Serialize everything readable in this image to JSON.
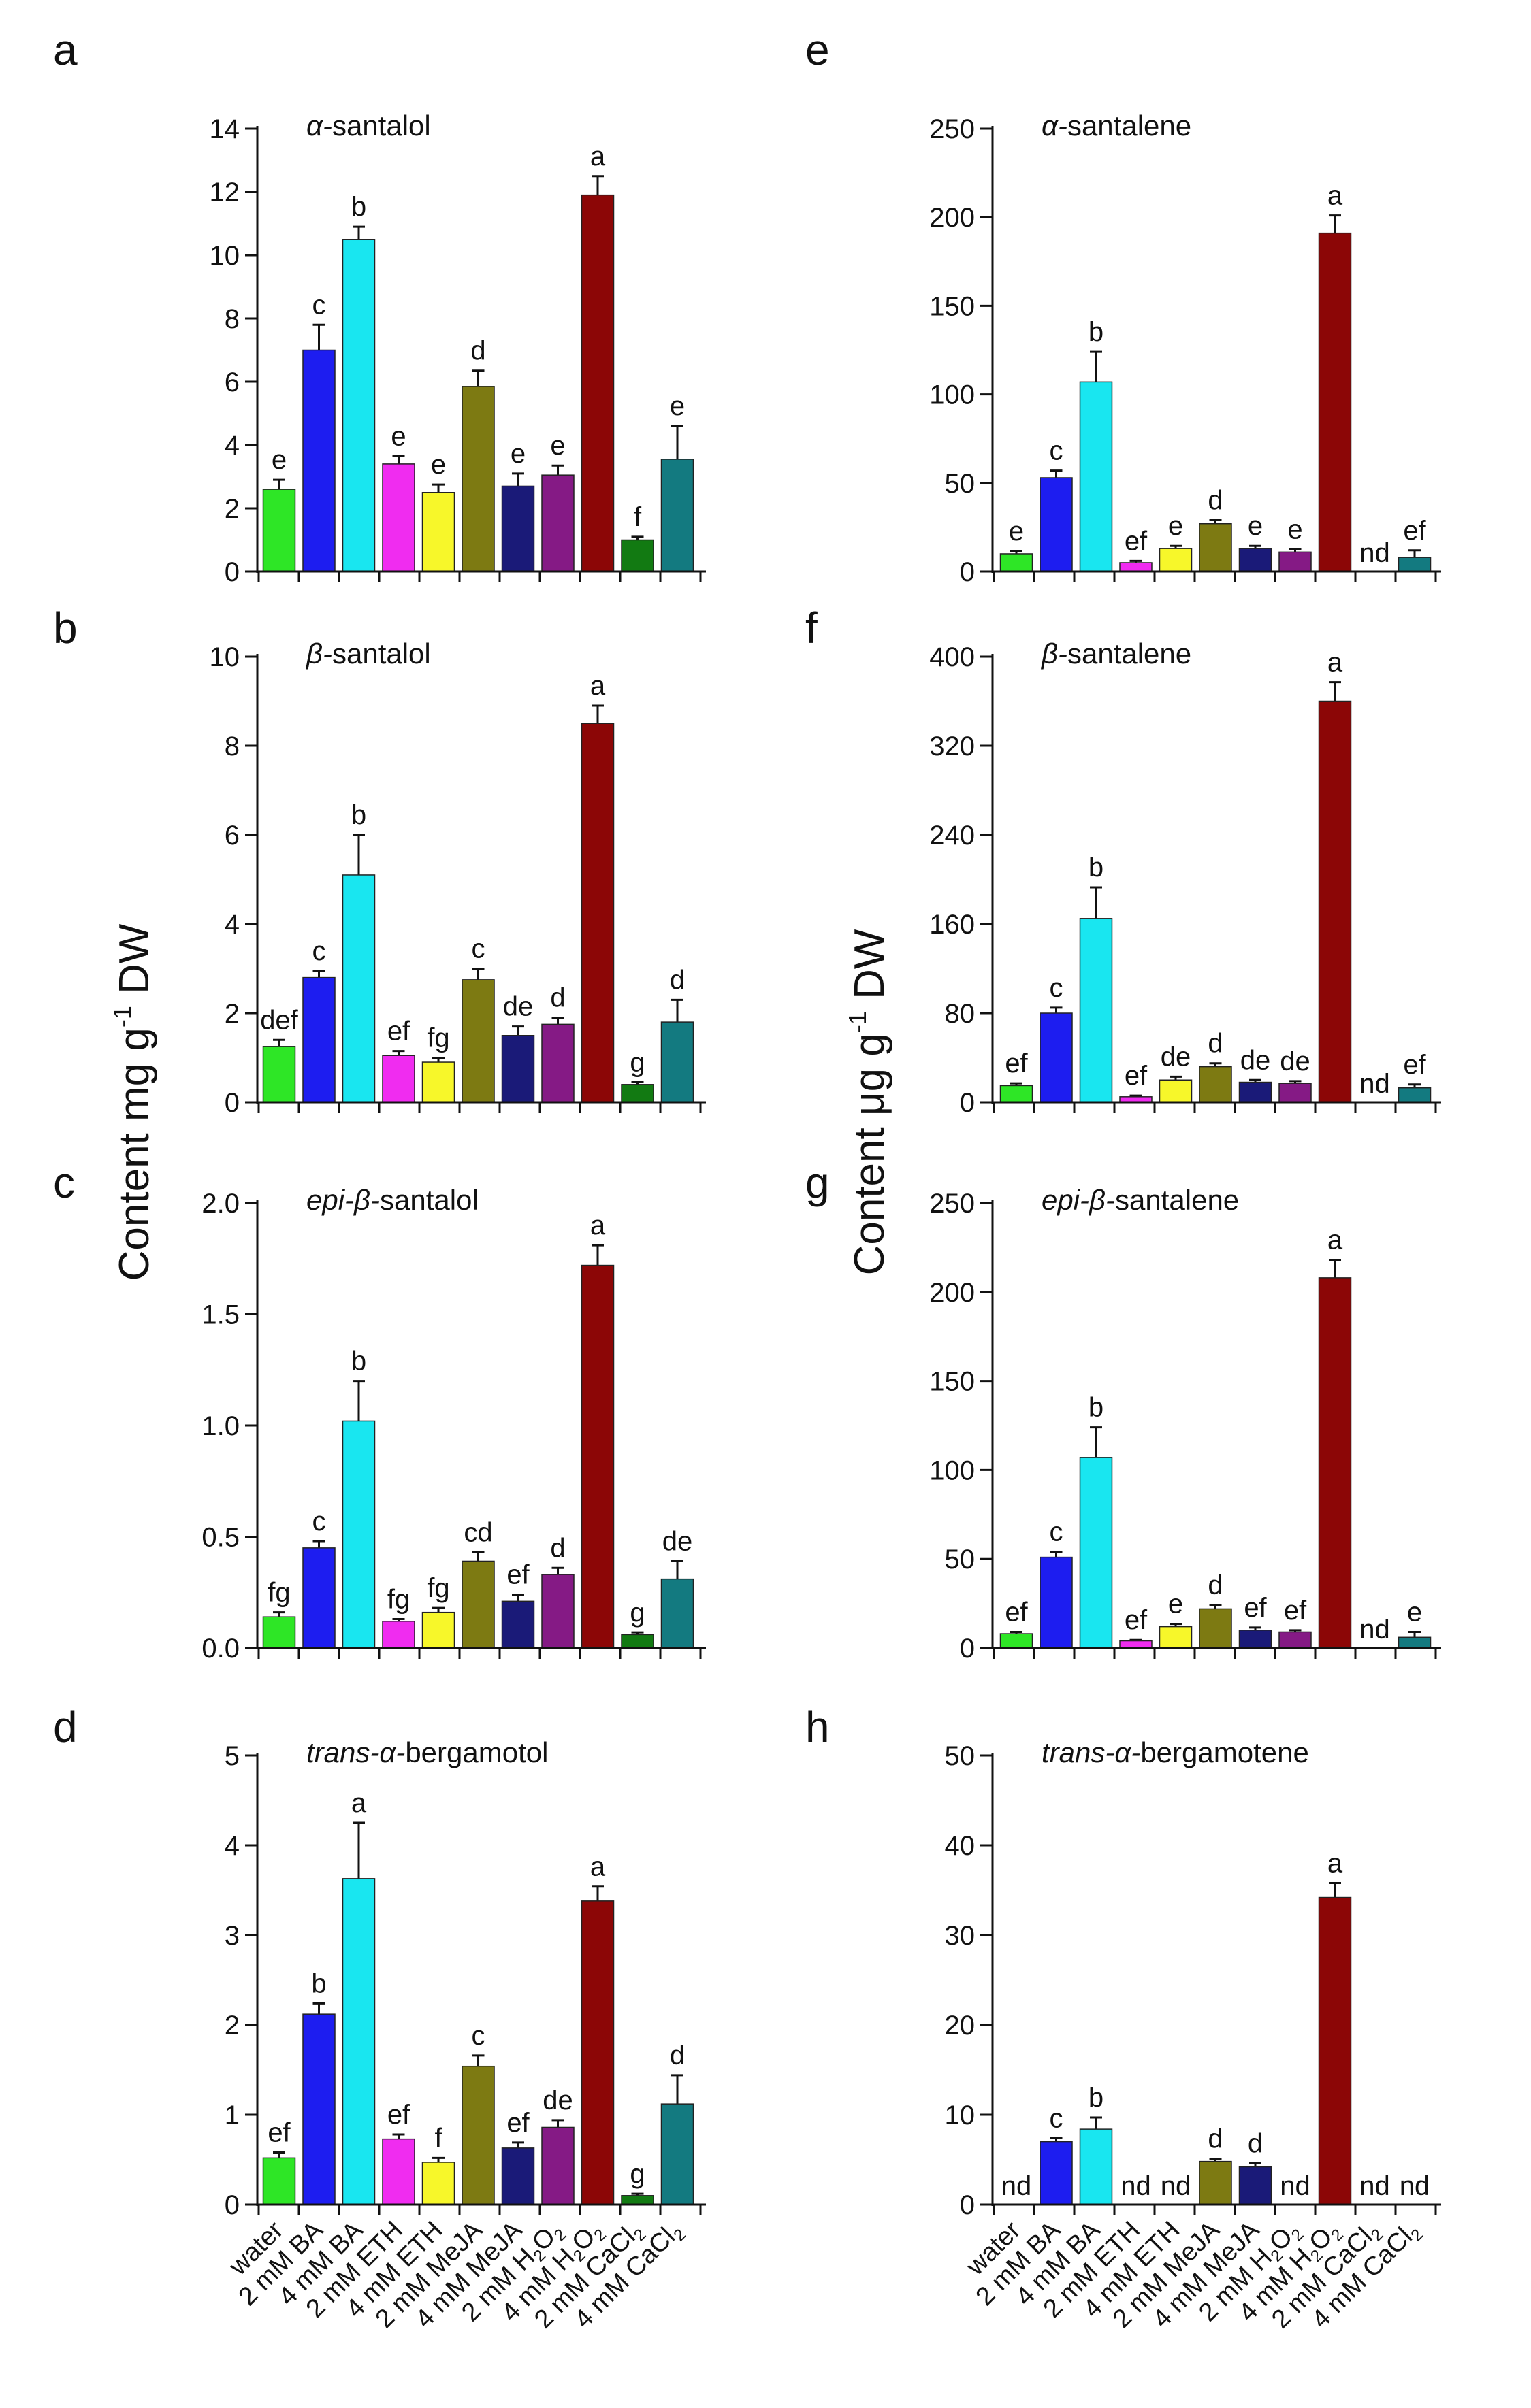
{
  "chart_data": [
    {
      "type": "bar",
      "panel_letter": "a",
      "column": "left",
      "title_prefix": "α-",
      "title": "santalol",
      "categories": [
        "water",
        "2 mM BA",
        "4 mM BA",
        "2 mM ETH",
        "4 mM ETH",
        "2 mM MeJA",
        "4 mM MeJA",
        "2 mM H2O2",
        "4 mM H2O2",
        "2 mM CaCl2",
        "4 mM CaCl2"
      ],
      "values": [
        2.6,
        7.0,
        10.5,
        3.4,
        2.5,
        5.85,
        2.7,
        3.05,
        11.9,
        1.0,
        3.55
      ],
      "errors": [
        0.3,
        0.8,
        0.4,
        0.25,
        0.25,
        0.5,
        0.4,
        0.3,
        0.6,
        0.1,
        1.05
      ],
      "labels": [
        "e",
        "c",
        "b",
        "e",
        "e",
        "d",
        "e",
        "e",
        "a",
        "f",
        "e"
      ],
      "ylim": [
        0,
        14
      ],
      "yticks": [
        0,
        2,
        4,
        6,
        8,
        10,
        12,
        14
      ],
      "ytick_labels": [
        "0",
        "2",
        "4",
        "6",
        "8",
        "10",
        "12",
        "14"
      ]
    },
    {
      "type": "bar",
      "panel_letter": "b",
      "column": "left",
      "title_prefix": "β-",
      "title": "santalol",
      "categories": [
        "water",
        "2 mM BA",
        "4 mM BA",
        "2 mM ETH",
        "4 mM ETH",
        "2 mM MeJA",
        "4 mM MeJA",
        "2 mM H2O2",
        "4 mM H2O2",
        "2 mM CaCl2",
        "4 mM CaCl2"
      ],
      "values": [
        1.25,
        2.8,
        5.1,
        1.05,
        0.9,
        2.75,
        1.5,
        1.75,
        8.5,
        0.4,
        1.8
      ],
      "errors": [
        0.15,
        0.15,
        0.9,
        0.1,
        0.1,
        0.25,
        0.2,
        0.15,
        0.4,
        0.05,
        0.5
      ],
      "labels": [
        "def",
        "c",
        "b",
        "ef",
        "fg",
        "c",
        "de",
        "d",
        "a",
        "g",
        "d"
      ],
      "ylim": [
        0,
        10
      ],
      "yticks": [
        0,
        2,
        4,
        6,
        8,
        10
      ],
      "ytick_labels": [
        "0",
        "2",
        "4",
        "6",
        "8",
        "10"
      ]
    },
    {
      "type": "bar",
      "panel_letter": "c",
      "column": "left",
      "title_prefix": "epi-β-",
      "title": "santalol",
      "categories": [
        "water",
        "2 mM BA",
        "4 mM BA",
        "2 mM ETH",
        "4 mM ETH",
        "2 mM MeJA",
        "4 mM MeJA",
        "2 mM H2O2",
        "4 mM H2O2",
        "2 mM CaCl2",
        "4 mM CaCl2"
      ],
      "values": [
        0.14,
        0.45,
        1.02,
        0.12,
        0.16,
        0.39,
        0.21,
        0.33,
        1.72,
        0.06,
        0.31
      ],
      "errors": [
        0.02,
        0.03,
        0.18,
        0.01,
        0.02,
        0.04,
        0.03,
        0.03,
        0.09,
        0.01,
        0.08
      ],
      "labels": [
        "fg",
        "c",
        "b",
        "fg",
        "fg",
        "cd",
        "ef",
        "d",
        "a",
        "g",
        "de"
      ],
      "ylim": [
        0,
        2.0
      ],
      "yticks": [
        0,
        0.5,
        1.0,
        1.5,
        2.0
      ],
      "ytick_labels": [
        "0.0",
        "0.5",
        "1.0",
        "1.5",
        "2.0"
      ]
    },
    {
      "type": "bar",
      "panel_letter": "d",
      "column": "left",
      "title_prefix": "trans-α-",
      "title": "bergamotol",
      "categories": [
        "water",
        "2 mM BA",
        "4 mM BA",
        "2 mM ETH",
        "4 mM ETH",
        "2 mM MeJA",
        "4 mM MeJA",
        "2 mM H2O2",
        "4 mM H2O2",
        "2 mM CaCl2",
        "4 mM CaCl2"
      ],
      "values": [
        0.52,
        2.12,
        3.63,
        0.73,
        0.47,
        1.54,
        0.63,
        0.86,
        3.38,
        0.1,
        1.12
      ],
      "errors": [
        0.06,
        0.12,
        0.62,
        0.05,
        0.05,
        0.12,
        0.06,
        0.08,
        0.16,
        0.02,
        0.32
      ],
      "labels": [
        "ef",
        "b",
        "a",
        "ef",
        "f",
        "c",
        "ef",
        "de",
        "a",
        "g",
        "d"
      ],
      "ylim": [
        0,
        5
      ],
      "yticks": [
        0,
        1,
        2,
        3,
        4,
        5
      ],
      "ytick_labels": [
        "0",
        "1",
        "2",
        "3",
        "4",
        "5"
      ]
    },
    {
      "type": "bar",
      "panel_letter": "e",
      "column": "right",
      "title_prefix": "α-",
      "title": "santalene",
      "categories": [
        "water",
        "2 mM BA",
        "4 mM BA",
        "2 mM ETH",
        "4 mM ETH",
        "2 mM MeJA",
        "4 mM MeJA",
        "2 mM H2O2",
        "4 mM H2O2",
        "2 mM CaCl2",
        "4 mM CaCl2"
      ],
      "values": [
        10,
        53,
        107,
        5,
        13,
        27,
        13,
        11,
        191,
        0,
        8
      ],
      "errors": [
        1.5,
        4,
        17,
        1,
        1.5,
        2,
        1.5,
        1.5,
        10,
        0,
        4
      ],
      "labels": [
        "e",
        "c",
        "b",
        "ef",
        "e",
        "d",
        "e",
        "e",
        "a",
        "nd",
        "ef"
      ],
      "ylim": [
        0,
        250
      ],
      "yticks": [
        0,
        50,
        100,
        150,
        200,
        250
      ],
      "ytick_labels": [
        "0",
        "50",
        "100",
        "150",
        "200",
        "250"
      ]
    },
    {
      "type": "bar",
      "panel_letter": "f",
      "column": "right",
      "title_prefix": "β-",
      "title": "santalene",
      "categories": [
        "water",
        "2 mM BA",
        "4 mM BA",
        "2 mM ETH",
        "4 mM ETH",
        "2 mM MeJA",
        "4 mM MeJA",
        "2 mM H2O2",
        "4 mM H2O2",
        "2 mM CaCl2",
        "4 mM CaCl2"
      ],
      "values": [
        15,
        80,
        165,
        5,
        20,
        32,
        18,
        17,
        360,
        0,
        13
      ],
      "errors": [
        2,
        5,
        28,
        1,
        3,
        3,
        2,
        2,
        17,
        0,
        3
      ],
      "labels": [
        "ef",
        "c",
        "b",
        "ef",
        "de",
        "d",
        "de",
        "de",
        "a",
        "nd",
        "ef"
      ],
      "ylim": [
        0,
        400
      ],
      "yticks": [
        0,
        80,
        160,
        240,
        320,
        400
      ],
      "ytick_labels": [
        "0",
        "80",
        "160",
        "240",
        "320",
        "400"
      ]
    },
    {
      "type": "bar",
      "panel_letter": "g",
      "column": "right",
      "title_prefix": "epi-β-",
      "title": "santalene",
      "categories": [
        "water",
        "2 mM BA",
        "4 mM BA",
        "2 mM ETH",
        "4 mM ETH",
        "2 mM MeJA",
        "4 mM MeJA",
        "2 mM H2O2",
        "4 mM H2O2",
        "2 mM CaCl2",
        "4 mM CaCl2"
      ],
      "values": [
        8,
        51,
        107,
        4,
        12,
        22,
        10,
        9,
        208,
        0,
        6
      ],
      "errors": [
        1,
        3,
        17,
        0.5,
        1.5,
        2,
        1.5,
        1,
        10,
        0,
        3
      ],
      "labels": [
        "ef",
        "c",
        "b",
        "ef",
        "e",
        "d",
        "ef",
        "ef",
        "a",
        "nd",
        "e"
      ],
      "ylim": [
        0,
        250
      ],
      "yticks": [
        0,
        50,
        100,
        150,
        200,
        250
      ],
      "ytick_labels": [
        "0",
        "50",
        "100",
        "150",
        "200",
        "250"
      ]
    },
    {
      "type": "bar",
      "panel_letter": "h",
      "column": "right",
      "title_prefix": "trans-α-",
      "title": "bergamotene",
      "categories": [
        "water",
        "2 mM BA",
        "4 mM BA",
        "2 mM ETH",
        "4 mM ETH",
        "2 mM MeJA",
        "4 mM MeJA",
        "2 mM H2O2",
        "4 mM H2O2",
        "2 mM CaCl2",
        "4 mM CaCl2"
      ],
      "values": [
        0,
        7,
        8.4,
        0,
        0,
        4.8,
        4.2,
        0,
        34.2,
        0,
        0
      ],
      "errors": [
        0,
        0.4,
        1.3,
        0,
        0,
        0.3,
        0.4,
        0,
        1.6,
        0,
        0
      ],
      "labels": [
        "nd",
        "c",
        "b",
        "nd",
        "nd",
        "d",
        "d",
        "nd",
        "a",
        "nd",
        "nd"
      ],
      "ylim": [
        0,
        50
      ],
      "yticks": [
        0,
        10,
        20,
        30,
        40,
        50
      ],
      "ytick_labels": [
        "0",
        "10",
        "20",
        "30",
        "40",
        "50"
      ]
    }
  ],
  "axis_titles": {
    "left": {
      "main": "Content mg g",
      "sup": "-1",
      "unit": " DW"
    },
    "right": {
      "main": "Content μg g",
      "sup": "-1",
      "unit": " DW"
    }
  },
  "x_tick_labels": [
    {
      "prefix": "water",
      "sub": "",
      "suffix": ""
    },
    {
      "prefix": "2 mM BA",
      "sub": "",
      "suffix": ""
    },
    {
      "prefix": "4 mM BA",
      "sub": "",
      "suffix": ""
    },
    {
      "prefix": "2 mM ETH",
      "sub": "",
      "suffix": ""
    },
    {
      "prefix": "4 mM ETH",
      "sub": "",
      "suffix": ""
    },
    {
      "prefix": "2 mM MeJA",
      "sub": "",
      "suffix": ""
    },
    {
      "prefix": "4 mM MeJA",
      "sub": "",
      "suffix": ""
    },
    {
      "prefix": "2 mM H",
      "sub": "2",
      "suffix": "O",
      "sub2": "2"
    },
    {
      "prefix": "4 mM H",
      "sub": "2",
      "suffix": "O",
      "sub2": "2"
    },
    {
      "prefix": "2 mM CaCl",
      "sub": "2",
      "suffix": ""
    },
    {
      "prefix": "4 mM CaCl",
      "sub": "2",
      "suffix": ""
    }
  ],
  "bar_colors": [
    "#2ee626",
    "#1d1df0",
    "#19e6f0",
    "#f02cf0",
    "#f7f72a",
    "#7d7a12",
    "#1a1a78",
    "#851a85",
    "#8c0606",
    "#127a12",
    "#137a80"
  ]
}
